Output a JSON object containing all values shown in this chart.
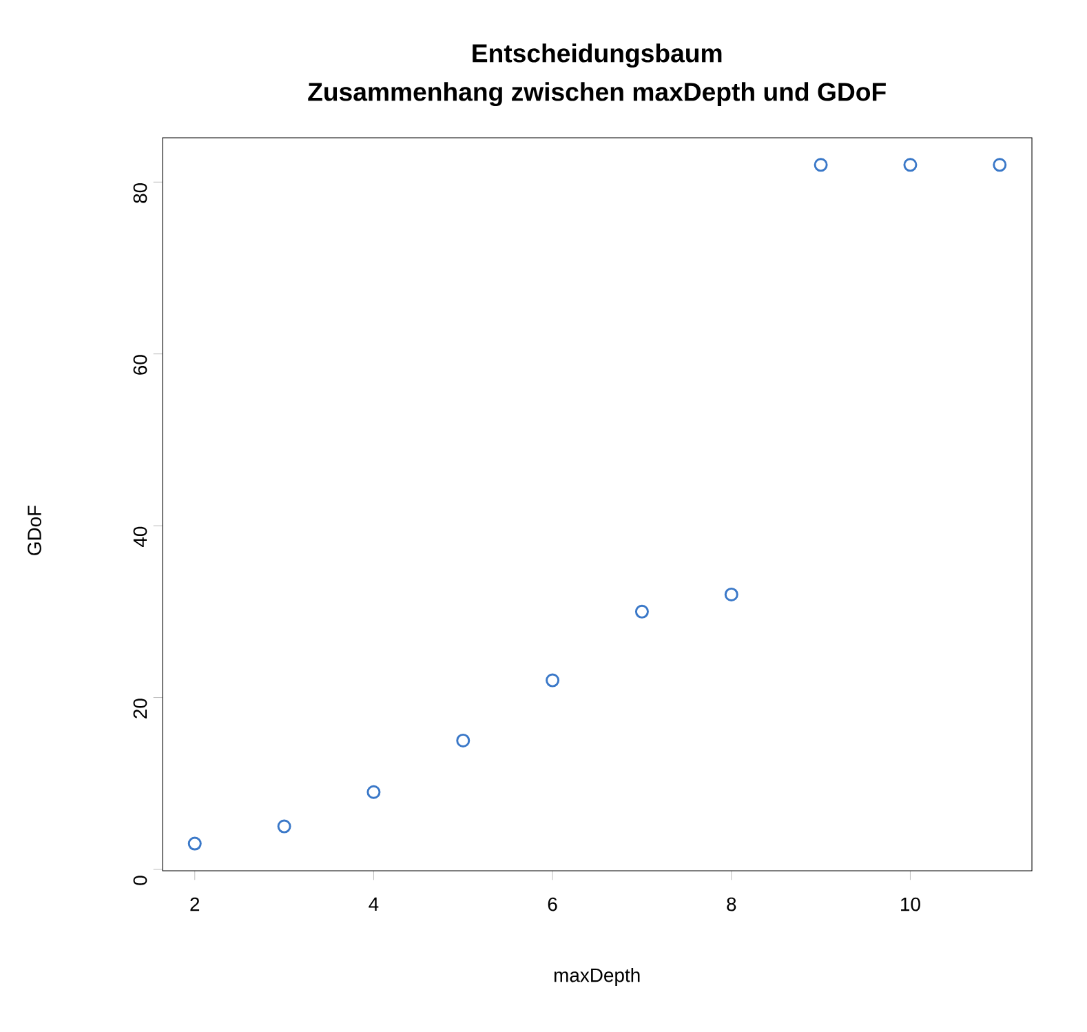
{
  "chart_data": {
    "type": "scatter",
    "title": "Entscheidungsbaum",
    "subtitle": "Zusammenhang zwischen maxDepth und GDoF",
    "xlabel": "maxDepth",
    "ylabel": "GDoF",
    "x": [
      2,
      3,
      4,
      5,
      6,
      7,
      8,
      9,
      10,
      11
    ],
    "values": [
      3,
      5,
      9,
      15,
      22,
      30,
      32,
      82,
      82,
      82
    ],
    "color": "#3a78c8",
    "marker": "circle",
    "xlim": [
      1.64,
      11.36
    ],
    "ylim": [
      -0.16,
      85.16
    ],
    "xticks": [
      2,
      4,
      6,
      8,
      10
    ],
    "yticks": [
      0,
      20,
      40,
      60,
      80
    ],
    "grid": false
  }
}
